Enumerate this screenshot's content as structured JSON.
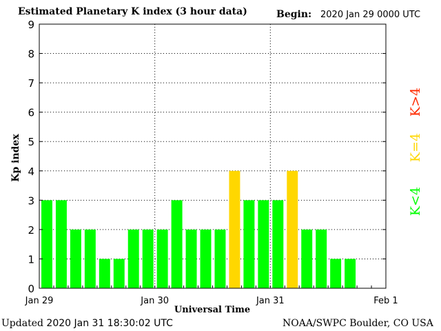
{
  "header": {
    "title": "Estimated Planetary K index (3 hour data)",
    "begin_label": "Begin:",
    "begin_value": "2020 Jan 29 0000 UTC"
  },
  "footer": {
    "updated_label": "Updated",
    "updated_value": "2020 Jan 31 18:30:02 UTC",
    "source": "NOAA/SWPC Boulder, CO USA"
  },
  "legend": {
    "k_gt4": "K>4",
    "k_eq4": "K=4",
    "k_lt4": "K<4",
    "placement": "right"
  },
  "colors": {
    "k_lt4": "#00ff00",
    "k_eq4": "#ffd700",
    "k_gt4": "#ff2a00",
    "grid": "#000000"
  },
  "chart_data": {
    "type": "bar",
    "title": "Estimated Planetary K index (3 hour data)",
    "xlabel": "Universal Time",
    "ylabel": "Kp index",
    "ylim": [
      0,
      9
    ],
    "yticks": [
      "0",
      "1",
      "2",
      "3",
      "4",
      "5",
      "6",
      "7",
      "8",
      "9"
    ],
    "xticks": [
      "Jan 29",
      "Jan 30",
      "Jan 31",
      "Feb 1"
    ],
    "grid": true,
    "interval_hours": 3,
    "values": [
      3,
      3,
      2,
      2,
      1,
      1,
      2,
      2,
      2,
      3,
      2,
      2,
      2,
      4,
      3,
      3,
      3,
      4,
      2,
      2,
      1,
      1
    ]
  }
}
